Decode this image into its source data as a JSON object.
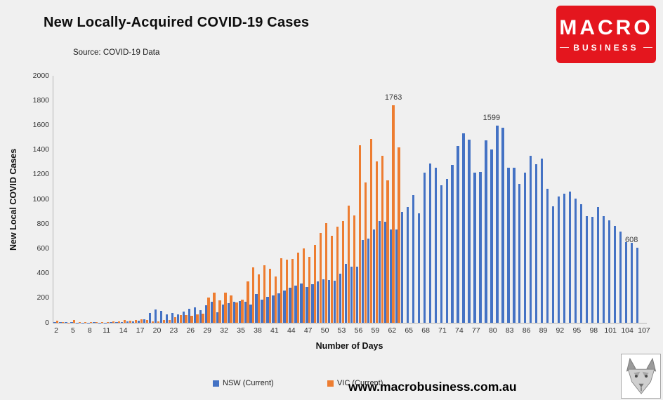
{
  "header": {
    "title": "New Locally-Acquired COVID-19 Cases",
    "source": "Source: COVID-19 Data"
  },
  "logo": {
    "line1": "MACRO",
    "line2": "BUSINESS",
    "bg_color": "#e4161e"
  },
  "footer": {
    "url": "www.macrobusiness.com.au"
  },
  "legend": [
    {
      "label": "NSW (Current)",
      "color": "#4472C4"
    },
    {
      "label": "VIC (Current)",
      "color": "#ED7D31"
    }
  ],
  "chart_data": {
    "type": "bar",
    "title": "New Locally-Acquired COVID-19 Cases",
    "xlabel": "Number of Days",
    "ylabel": "New Local COVID Cases",
    "ylim": [
      0,
      2000
    ],
    "ytick_step": 200,
    "x_start": 2,
    "x_end": 107,
    "xtick_step": 3,
    "grid": false,
    "legend_position": "bottom",
    "series": [
      {
        "name": "NSW (Current)",
        "color": "#4472C4",
        "values": [
          6,
          4,
          3,
          3,
          2,
          2,
          2,
          3,
          2,
          2,
          4,
          6,
          8,
          10,
          14,
          19,
          30,
          77,
          110,
          98,
          66,
          78,
          70,
          89,
          112,
          124,
          100,
          141,
          172,
          87,
          145,
          160,
          170,
          177,
          172,
          150,
          233,
          190,
          210,
          222,
          239,
          262,
          283,
          300,
          320,
          290,
          310,
          333,
          350,
          345,
          340,
          400,
          478,
          452,
          455,
          670,
          681,
          753,
          825,
          818,
          753,
          753,
          900,
          935,
          1035,
          885,
          1218,
          1290,
          1257,
          1116,
          1164,
          1281,
          1431,
          1533,
          1485,
          1218,
          1220,
          1480,
          1405,
          1599,
          1577,
          1257,
          1255,
          1127,
          1218,
          1351,
          1284,
          1331,
          1087,
          941,
          1022,
          1043,
          1063,
          1007,
          961,
          863,
          860,
          935,
          864,
          832,
          787,
          738,
          653,
          646,
          608,
          null,
          null
        ]
      },
      {
        "name": "VIC (Current)",
        "color": "#ED7D31",
        "values": [
          15,
          4,
          2,
          25,
          8,
          5,
          6,
          4,
          3,
          4,
          11,
          13,
          22,
          16,
          24,
          26,
          22,
          11,
          12,
          24,
          22,
          45,
          65,
          61,
          55,
          71,
          73,
          204,
          246,
          183,
          246,
          221,
          167,
          190,
          334,
          450,
          392,
          466,
          438,
          377,
          522,
          510,
          515,
          567,
          603,
          535,
          628,
          725,
          809,
          705,
          779,
          826,
          950,
          870,
          1438,
          1138,
          1488,
          1305,
          1355,
          1151,
          1763,
          1421,
          null,
          null,
          null,
          null,
          null,
          null,
          null,
          null,
          null,
          null,
          null,
          null,
          null,
          null,
          null,
          null,
          null,
          null,
          null,
          null,
          null,
          null,
          null,
          null,
          null,
          null,
          null,
          null,
          null,
          null,
          null,
          null,
          null,
          null,
          null,
          null,
          null,
          null,
          null,
          null,
          null,
          null,
          null,
          null
        ]
      }
    ],
    "annotations": [
      {
        "day": 62,
        "value": 1763,
        "label": "1763",
        "series_index": 1
      },
      {
        "day": 80,
        "value": 1599,
        "label": "1599",
        "series_index": 0
      },
      {
        "day": 105,
        "value": 608,
        "label": "608",
        "series_index": 0
      }
    ]
  }
}
